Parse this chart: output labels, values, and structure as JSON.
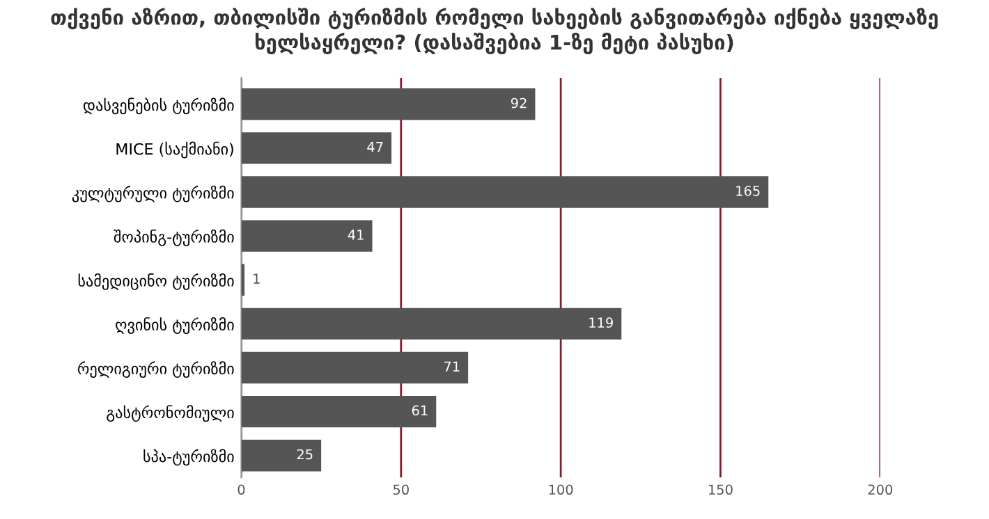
{
  "chart_data": {
    "type": "bar",
    "orientation": "horizontal",
    "title": "თქვენი აზრით, თბილისში ტურიზმის რომელი სახეების განვითარება იქნება ყველაზე ხელსაყრელი? (დასაშვებია 1-ზე მეტი პასუხი)",
    "categories": [
      "დასვენების ტურიზმი",
      "MICE (საქმიანი)",
      "კულტურული ტურიზმი",
      "შოპინგ-ტურიზმი",
      "სამედიცინო ტურიზმი",
      "ღვინის ტურიზმი",
      "რელიგიური ტურიზმი",
      "გასტრონომიული",
      "სპა-ტურიზმი"
    ],
    "values": [
      92,
      47,
      165,
      41,
      1,
      119,
      71,
      61,
      25
    ],
    "color": "#555555",
    "xlim": [
      0,
      200
    ],
    "xticks": [
      0,
      50,
      100,
      150,
      200
    ],
    "grid": "x",
    "data_labels": true
  }
}
